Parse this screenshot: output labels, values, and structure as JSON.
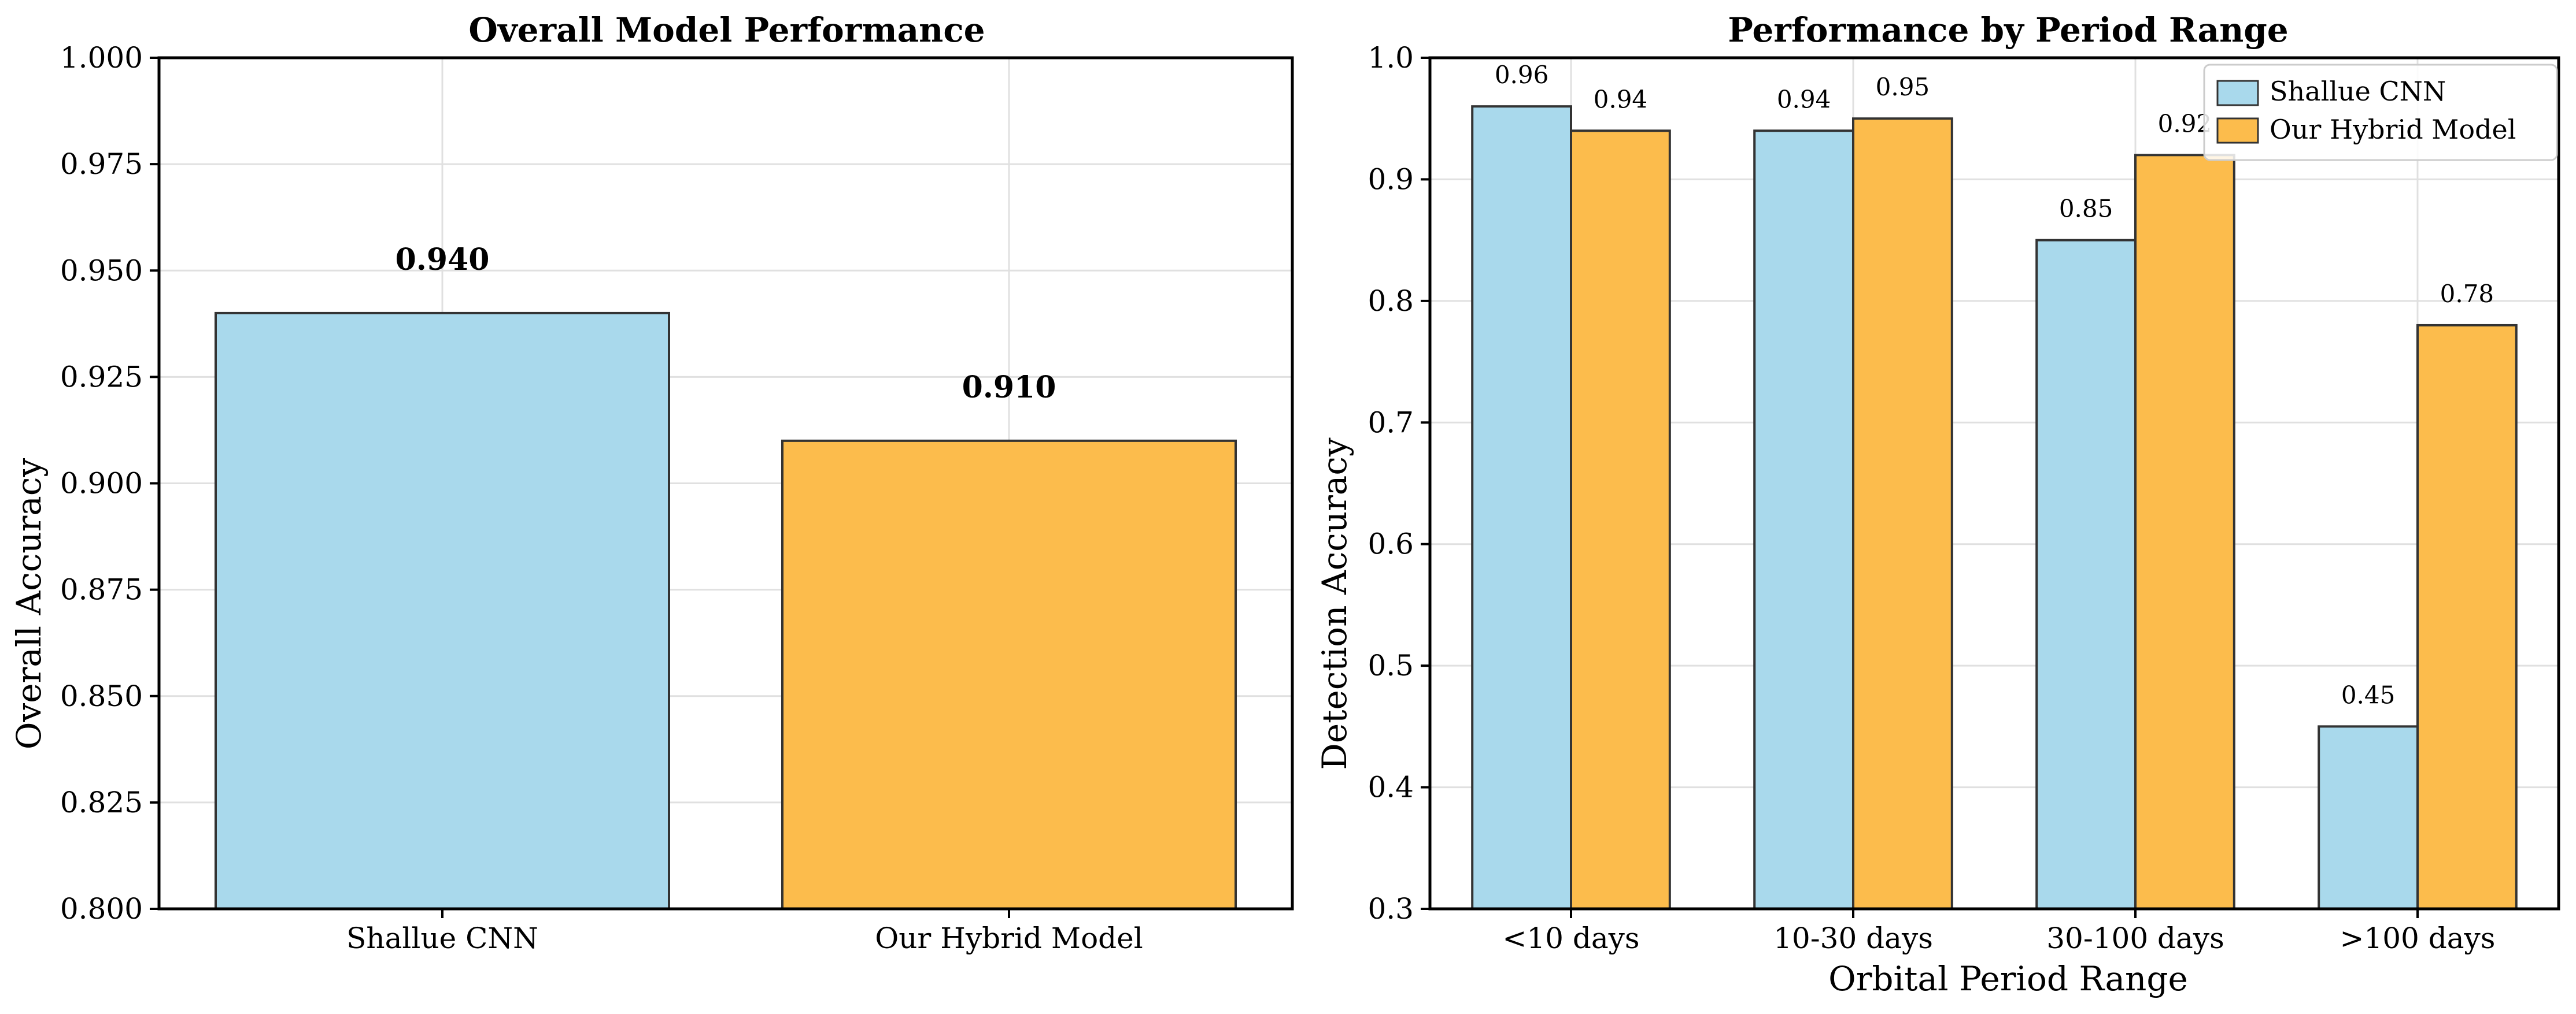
{
  "chart_data": [
    {
      "type": "bar",
      "title": "Overall Model Performance",
      "xlabel": "",
      "ylabel": "Overall Accuracy",
      "categories": [
        "Shallue CNN",
        "Our Hybrid Model"
      ],
      "values": [
        0.94,
        0.91
      ],
      "value_labels": [
        "0.940",
        "0.910"
      ],
      "bar_colors": [
        "#a9d9ec",
        "#fcbc4c"
      ],
      "ylim": [
        0.8,
        1.0
      ],
      "yticks": [
        0.8,
        0.825,
        0.85,
        0.875,
        0.9,
        0.925,
        0.95,
        0.975,
        1.0
      ],
      "ytick_labels": [
        "0.800",
        "0.825",
        "0.850",
        "0.875",
        "0.900",
        "0.925",
        "0.950",
        "0.975",
        "1.000"
      ],
      "grid": true
    },
    {
      "type": "bar",
      "title": "Performance by Period Range",
      "xlabel": "Orbital Period Range",
      "ylabel": "Detection Accuracy",
      "categories": [
        "<10 days",
        "10-30 days",
        "30-100 days",
        ">100 days"
      ],
      "series": [
        {
          "name": "Shallue CNN",
          "color": "#a9d9ec",
          "values": [
            0.96,
            0.94,
            0.85,
            0.45
          ],
          "value_labels": [
            "0.96",
            "0.94",
            "0.85",
            "0.45"
          ]
        },
        {
          "name": "Our Hybrid Model",
          "color": "#fcbc4c",
          "values": [
            0.94,
            0.95,
            0.92,
            0.78
          ],
          "value_labels": [
            "0.94",
            "0.95",
            "0.92",
            "0.78"
          ]
        }
      ],
      "ylim": [
        0.3,
        1.0
      ],
      "yticks": [
        0.3,
        0.4,
        0.5,
        0.6,
        0.7,
        0.8,
        0.9,
        1.0
      ],
      "ytick_labels": [
        "0.3",
        "0.4",
        "0.5",
        "0.6",
        "0.7",
        "0.8",
        "0.9",
        "1.0"
      ],
      "legend_position": "upper-right",
      "grid": true
    }
  ]
}
